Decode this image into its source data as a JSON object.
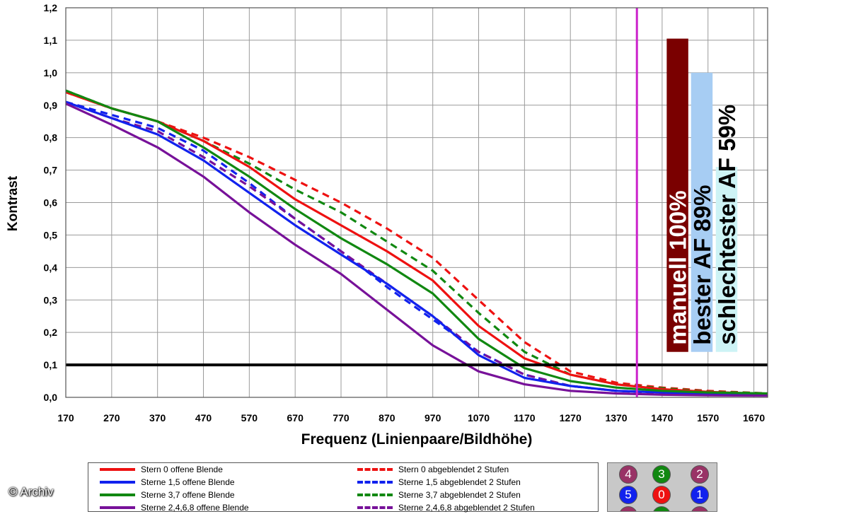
{
  "chart_data": {
    "type": "line",
    "title": "",
    "xlabel": "Frequenz (Linienpaare/Bildhöhe)",
    "ylabel": "Kontrast",
    "xlim": [
      170,
      1700
    ],
    "ylim": [
      0,
      1.2
    ],
    "x_ticks": [
      "170",
      "270",
      "370",
      "470",
      "570",
      "670",
      "770",
      "870",
      "970",
      "1070",
      "1170",
      "1270",
      "1370",
      "1470",
      "1570",
      "1670"
    ],
    "y_ticks": [
      "0,0",
      "0,1",
      "0,2",
      "0,3",
      "0,4",
      "0,5",
      "0,6",
      "0,7",
      "0,8",
      "0,9",
      "1,0",
      "1,1",
      "1,2"
    ],
    "grid": true,
    "reference_line": {
      "y": 0.1,
      "color": "#000000"
    },
    "marker_line": {
      "x": 1415,
      "color": "#cc22cc"
    },
    "series": [
      {
        "name": "Stern 0 offene Blende",
        "color": "#ee1111",
        "dash": false,
        "points": [
          [
            170,
            0.94
          ],
          [
            270,
            0.89
          ],
          [
            370,
            0.85
          ],
          [
            470,
            0.79
          ],
          [
            570,
            0.71
          ],
          [
            670,
            0.61
          ],
          [
            770,
            0.53
          ],
          [
            870,
            0.45
          ],
          [
            970,
            0.36
          ],
          [
            1070,
            0.22
          ],
          [
            1170,
            0.12
          ],
          [
            1270,
            0.07
          ],
          [
            1370,
            0.04
          ],
          [
            1470,
            0.025
          ],
          [
            1570,
            0.017
          ],
          [
            1700,
            0.01
          ]
        ]
      },
      {
        "name": "Sterne 1,5 offene Blende",
        "color": "#1122ee",
        "dash": false,
        "points": [
          [
            170,
            0.91
          ],
          [
            270,
            0.86
          ],
          [
            370,
            0.81
          ],
          [
            470,
            0.73
          ],
          [
            570,
            0.63
          ],
          [
            670,
            0.53
          ],
          [
            770,
            0.44
          ],
          [
            870,
            0.35
          ],
          [
            970,
            0.25
          ],
          [
            1070,
            0.13
          ],
          [
            1170,
            0.06
          ],
          [
            1270,
            0.035
          ],
          [
            1370,
            0.02
          ],
          [
            1470,
            0.015
          ],
          [
            1570,
            0.01
          ],
          [
            1700,
            0.008
          ]
        ]
      },
      {
        "name": "Sterne 3,7 offene Blende",
        "color": "#118811",
        "dash": false,
        "points": [
          [
            170,
            0.945
          ],
          [
            270,
            0.89
          ],
          [
            370,
            0.85
          ],
          [
            470,
            0.77
          ],
          [
            570,
            0.68
          ],
          [
            670,
            0.58
          ],
          [
            770,
            0.49
          ],
          [
            870,
            0.41
          ],
          [
            970,
            0.32
          ],
          [
            1070,
            0.18
          ],
          [
            1170,
            0.09
          ],
          [
            1270,
            0.05
          ],
          [
            1370,
            0.03
          ],
          [
            1470,
            0.02
          ],
          [
            1570,
            0.015
          ],
          [
            1700,
            0.012
          ]
        ]
      },
      {
        "name": "Sterne 2,4,6,8 offene Blende",
        "color": "#771199",
        "dash": false,
        "points": [
          [
            170,
            0.905
          ],
          [
            270,
            0.84
          ],
          [
            370,
            0.77
          ],
          [
            470,
            0.68
          ],
          [
            570,
            0.57
          ],
          [
            670,
            0.47
          ],
          [
            770,
            0.38
          ],
          [
            870,
            0.27
          ],
          [
            970,
            0.16
          ],
          [
            1070,
            0.08
          ],
          [
            1170,
            0.04
          ],
          [
            1270,
            0.02
          ],
          [
            1370,
            0.012
          ],
          [
            1470,
            0.008
          ],
          [
            1570,
            0.006
          ],
          [
            1700,
            0.005
          ]
        ]
      },
      {
        "name": "Stern 0 abgeblendet 2 Stufen",
        "color": "#ee1111",
        "dash": true,
        "points": [
          [
            170,
            0.94
          ],
          [
            270,
            0.89
          ],
          [
            370,
            0.85
          ],
          [
            470,
            0.8
          ],
          [
            570,
            0.74
          ],
          [
            670,
            0.67
          ],
          [
            770,
            0.6
          ],
          [
            870,
            0.52
          ],
          [
            970,
            0.43
          ],
          [
            1070,
            0.3
          ],
          [
            1170,
            0.17
          ],
          [
            1270,
            0.08
          ],
          [
            1370,
            0.045
          ],
          [
            1470,
            0.03
          ],
          [
            1570,
            0.02
          ],
          [
            1700,
            0.012
          ]
        ]
      },
      {
        "name": "Sterne 1,5 abgeblendet 2 Stufen",
        "color": "#1122ee",
        "dash": true,
        "points": [
          [
            170,
            0.91
          ],
          [
            270,
            0.87
          ],
          [
            370,
            0.83
          ],
          [
            470,
            0.76
          ],
          [
            570,
            0.66
          ],
          [
            670,
            0.55
          ],
          [
            770,
            0.45
          ],
          [
            870,
            0.34
          ],
          [
            970,
            0.24
          ],
          [
            1070,
            0.14
          ],
          [
            1170,
            0.07
          ],
          [
            1270,
            0.035
          ],
          [
            1370,
            0.02
          ],
          [
            1470,
            0.015
          ],
          [
            1570,
            0.01
          ],
          [
            1700,
            0.008
          ]
        ]
      },
      {
        "name": "Sterne 3,7 abgeblendet 2 Stufen",
        "color": "#118811",
        "dash": true,
        "points": [
          [
            170,
            0.945
          ],
          [
            270,
            0.89
          ],
          [
            370,
            0.85
          ],
          [
            470,
            0.79
          ],
          [
            570,
            0.72
          ],
          [
            670,
            0.64
          ],
          [
            770,
            0.57
          ],
          [
            870,
            0.48
          ],
          [
            970,
            0.39
          ],
          [
            1070,
            0.26
          ],
          [
            1170,
            0.14
          ],
          [
            1270,
            0.07
          ],
          [
            1370,
            0.04
          ],
          [
            1470,
            0.028
          ],
          [
            1570,
            0.018
          ],
          [
            1700,
            0.012
          ]
        ]
      },
      {
        "name": "Sterne 2,4,6,8 abgeblendet 2 Stufen",
        "color": "#771199",
        "dash": true,
        "points": [
          [
            170,
            0.91
          ],
          [
            270,
            0.86
          ],
          [
            370,
            0.82
          ],
          [
            470,
            0.74
          ],
          [
            570,
            0.65
          ],
          [
            670,
            0.55
          ],
          [
            770,
            0.45
          ],
          [
            870,
            0.35
          ],
          [
            970,
            0.25
          ],
          [
            1070,
            0.14
          ],
          [
            1170,
            0.07
          ],
          [
            1270,
            0.035
          ],
          [
            1370,
            0.02
          ],
          [
            1470,
            0.013
          ],
          [
            1570,
            0.01
          ],
          [
            1700,
            0.007
          ]
        ]
      }
    ],
    "bars": [
      {
        "label": "manuell 100%",
        "value": 1.105,
        "bottom": 0.14,
        "x_from": 1480,
        "x_to": 1527,
        "color": "#7a0000",
        "label_light": true
      },
      {
        "label": "bester AF 89%",
        "value": 1.0,
        "bottom": 0.14,
        "x_from": 1533,
        "x_to": 1580,
        "color": "#a7cdf3",
        "label_light": false
      },
      {
        "label": "schlechtester AF 59%",
        "value": 0.71,
        "bottom": 0.14,
        "x_from": 1587,
        "x_to": 1634,
        "color": "#cdf3f5",
        "label_light": false
      }
    ]
  },
  "star_panel": {
    "stars": [
      {
        "label": "4",
        "color": "#993366"
      },
      {
        "label": "3",
        "color": "#118811"
      },
      {
        "label": "2",
        "color": "#993366"
      },
      {
        "label": "5",
        "color": "#1122ee"
      },
      {
        "label": "0",
        "color": "#ee1111"
      },
      {
        "label": "1",
        "color": "#1122ee"
      },
      {
        "label": "",
        "color": "#993366"
      },
      {
        "label": "",
        "color": "#118811"
      },
      {
        "label": "",
        "color": "#993366"
      }
    ]
  },
  "credit": "© Archiv"
}
